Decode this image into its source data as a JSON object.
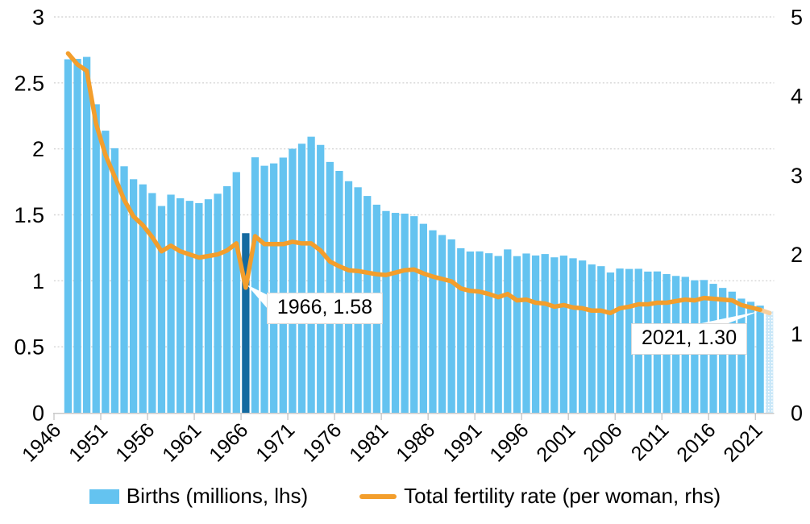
{
  "chart_data": {
    "type": "bar+line",
    "title": "",
    "x": {
      "axis_start_year": 1946,
      "axis_end_year": 2022,
      "tick_labels": [
        "1946",
        "1951",
        "1956",
        "1961",
        "1966",
        "1971",
        "1976",
        "1981",
        "1986",
        "1991",
        "1996",
        "2001",
        "2006",
        "2011",
        "2016",
        "2021"
      ]
    },
    "years": [
      1947,
      1948,
      1949,
      1950,
      1951,
      1952,
      1953,
      1954,
      1955,
      1956,
      1957,
      1958,
      1959,
      1960,
      1961,
      1962,
      1963,
      1964,
      1965,
      1966,
      1967,
      1968,
      1969,
      1970,
      1971,
      1972,
      1973,
      1974,
      1975,
      1976,
      1977,
      1978,
      1979,
      1980,
      1981,
      1982,
      1983,
      1984,
      1985,
      1986,
      1987,
      1988,
      1989,
      1990,
      1991,
      1992,
      1993,
      1994,
      1995,
      1996,
      1997,
      1998,
      1999,
      2000,
      2001,
      2002,
      2003,
      2004,
      2005,
      2006,
      2007,
      2008,
      2009,
      2010,
      2011,
      2012,
      2013,
      2014,
      2015,
      2016,
      2017,
      2018,
      2019,
      2020,
      2021,
      2022
    ],
    "series": [
      {
        "name": "Births (millions, lhs)",
        "type": "bar",
        "axis": "left",
        "highlight_year": 1966,
        "preliminary_from_year": 2022,
        "values": [
          2.679,
          2.682,
          2.697,
          2.338,
          2.138,
          2.005,
          1.868,
          1.77,
          1.731,
          1.665,
          1.567,
          1.653,
          1.626,
          1.606,
          1.589,
          1.618,
          1.66,
          1.717,
          1.824,
          1.361,
          1.936,
          1.872,
          1.89,
          1.934,
          2.001,
          2.039,
          2.092,
          2.03,
          1.901,
          1.833,
          1.755,
          1.709,
          1.643,
          1.577,
          1.529,
          1.515,
          1.509,
          1.49,
          1.432,
          1.383,
          1.347,
          1.314,
          1.247,
          1.222,
          1.223,
          1.209,
          1.188,
          1.238,
          1.187,
          1.207,
          1.192,
          1.203,
          1.178,
          1.191,
          1.171,
          1.154,
          1.124,
          1.111,
          1.063,
          1.093,
          1.09,
          1.091,
          1.07,
          1.071,
          1.051,
          1.037,
          1.03,
          1.004,
          1.006,
          0.977,
          0.946,
          0.918,
          0.865,
          0.841,
          0.812,
          0.771
        ]
      },
      {
        "name": "Total fertility rate (per woman, rhs)",
        "type": "line",
        "axis": "right",
        "preliminary_from_year": 2022,
        "values": [
          4.54,
          4.4,
          4.32,
          3.65,
          3.26,
          2.98,
          2.69,
          2.48,
          2.37,
          2.22,
          2.04,
          2.11,
          2.04,
          2.0,
          1.96,
          1.98,
          2.0,
          2.05,
          2.14,
          1.58,
          2.23,
          2.13,
          2.13,
          2.13,
          2.16,
          2.14,
          2.14,
          2.05,
          1.91,
          1.85,
          1.8,
          1.79,
          1.77,
          1.75,
          1.74,
          1.77,
          1.8,
          1.81,
          1.76,
          1.72,
          1.69,
          1.66,
          1.57,
          1.54,
          1.53,
          1.5,
          1.46,
          1.5,
          1.42,
          1.43,
          1.39,
          1.38,
          1.34,
          1.36,
          1.33,
          1.32,
          1.29,
          1.29,
          1.26,
          1.32,
          1.34,
          1.37,
          1.37,
          1.39,
          1.39,
          1.41,
          1.43,
          1.42,
          1.45,
          1.44,
          1.43,
          1.42,
          1.36,
          1.33,
          1.3,
          1.26
        ]
      }
    ],
    "axes": {
      "left": {
        "min": 0,
        "max": 3,
        "step": 0.5,
        "tick_labels": [
          "0",
          "0.5",
          "1",
          "1.5",
          "2",
          "2.5",
          "3"
        ]
      },
      "right": {
        "min": 0,
        "max": 5,
        "step": 1,
        "tick_labels": [
          "0",
          "1",
          "2",
          "3",
          "4",
          "5"
        ]
      }
    },
    "annotations": [
      {
        "label": "1966, 1.58",
        "year": 1966,
        "value": 1.58
      },
      {
        "label": "2021, 1.30",
        "year": 2021,
        "value": 1.3
      }
    ],
    "legend": [
      {
        "label": "Births (millions, lhs)",
        "swatch": "bar"
      },
      {
        "label": "Total fertility rate (per woman, rhs)",
        "swatch": "line"
      }
    ],
    "grid": "horizontal-dotted",
    "legend_position": "bottom-center",
    "colors": {
      "bar": "#64C3F0",
      "bar_highlight": "#146AA0",
      "bar_preliminary": "#C9E7F8",
      "line": "#F39E2C",
      "line_preliminary": "#F7CF9E",
      "gridline": "#D6D6D6",
      "axis": "#C9C9C9",
      "text": "#000000"
    }
  }
}
